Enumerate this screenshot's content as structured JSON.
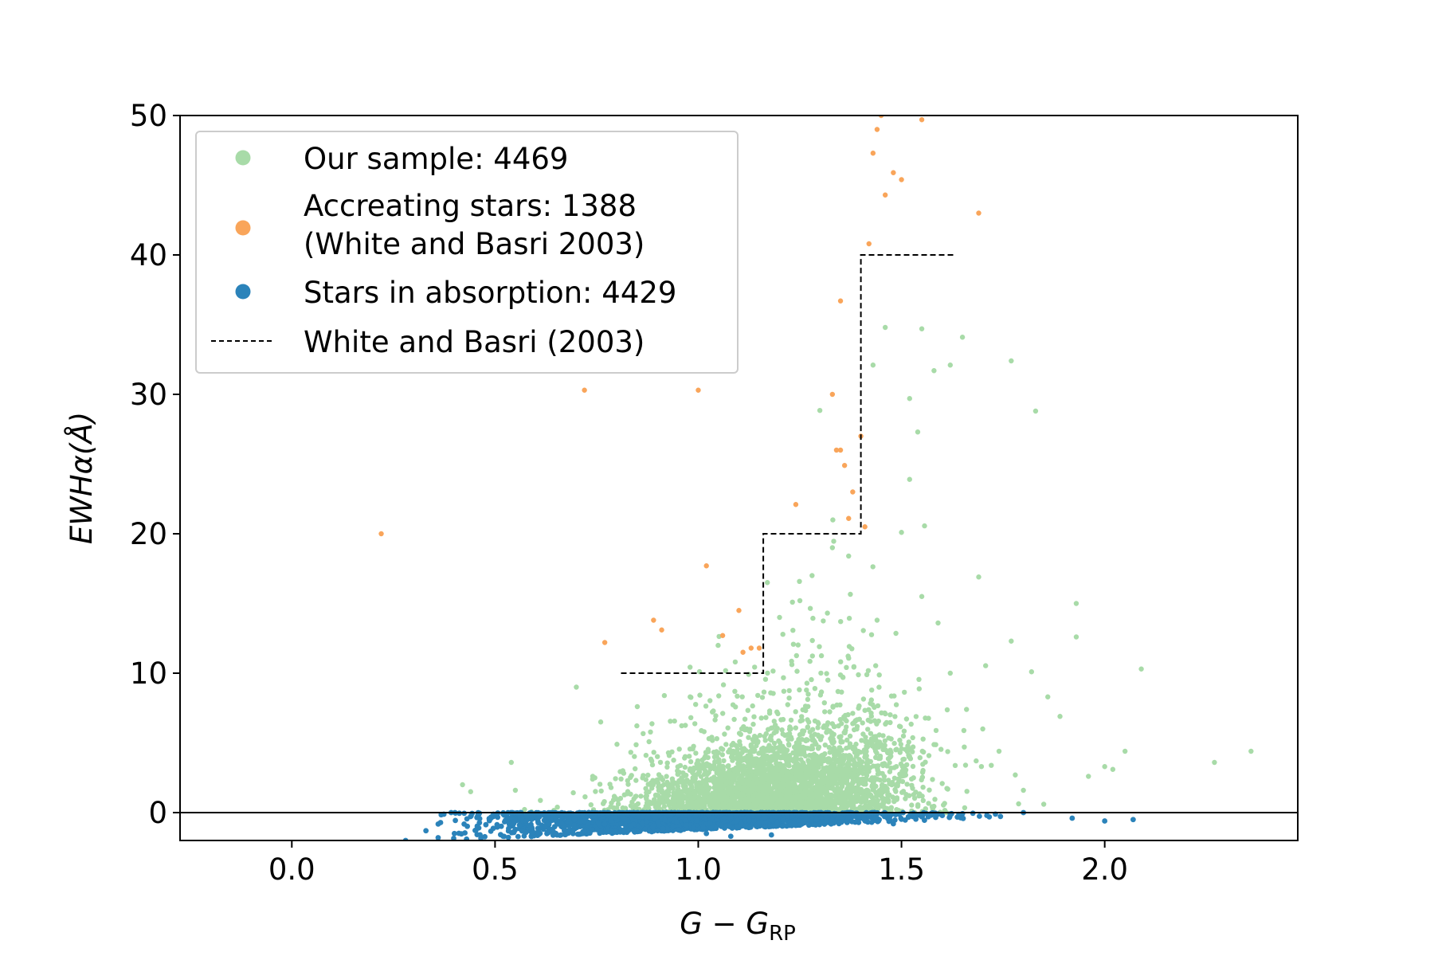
{
  "chart_data": {
    "type": "scatter",
    "xlabel_main": "G − G",
    "xlabel_sub": "RP",
    "ylabel_prefix": "EWHα(",
    "ylabel_unit": "Å",
    "ylabel_suffix": ")",
    "xlim": [
      -0.275,
      2.475
    ],
    "ylim": [
      -2,
      50
    ],
    "xticks": [
      0.0,
      0.5,
      1.0,
      1.5,
      2.0
    ],
    "xtick_labels": [
      "0.0",
      "0.5",
      "1.0",
      "1.5",
      "2.0"
    ],
    "yticks": [
      0,
      10,
      20,
      30,
      40,
      50
    ],
    "ytick_labels": [
      "0",
      "10",
      "20",
      "30",
      "40",
      "50"
    ],
    "grid": false,
    "legend_position": "top-left",
    "legend": [
      {
        "label": "Our sample: 4469",
        "marker": "dot",
        "color": "#a8dba8"
      },
      {
        "label": "Accreating stars: 1388",
        "label2": "(White and Basri 2003)",
        "marker": "dot",
        "color": "#f9a55a"
      },
      {
        "label": "Stars in absorption: 4429",
        "marker": "dot",
        "color": "#2b83ba"
      },
      {
        "label": "White and Basri (2003)",
        "marker": "dashed-line",
        "color": "#000000"
      }
    ],
    "zero_line": 0,
    "threshold_steps": [
      [
        0.81,
        10
      ],
      [
        1.16,
        10
      ],
      [
        1.16,
        20
      ],
      [
        1.4,
        20
      ],
      [
        1.4,
        40
      ],
      [
        1.63,
        40
      ]
    ],
    "series": [
      {
        "name": "Accreating stars: 1388 (White and Basri 2003)",
        "color": "#f9a55a",
        "points": [
          [
            0.22,
            20.0
          ],
          [
            0.72,
            30.3
          ],
          [
            0.77,
            12.2
          ],
          [
            0.89,
            13.8
          ],
          [
            0.91,
            13.1
          ],
          [
            1.0,
            30.3
          ],
          [
            1.02,
            17.7
          ],
          [
            1.06,
            12.7
          ],
          [
            1.1,
            14.5
          ],
          [
            1.11,
            11.5
          ],
          [
            1.13,
            11.8
          ],
          [
            1.15,
            11.8
          ],
          [
            1.24,
            22.1
          ],
          [
            1.33,
            30.0
          ],
          [
            1.35,
            36.7
          ],
          [
            1.34,
            26.0
          ],
          [
            1.35,
            26.0
          ],
          [
            1.36,
            24.9
          ],
          [
            1.37,
            21.1
          ],
          [
            1.38,
            23.0
          ],
          [
            1.4,
            27.0
          ],
          [
            1.41,
            20.5
          ],
          [
            1.42,
            40.8
          ],
          [
            1.43,
            47.3
          ],
          [
            1.44,
            49.0
          ],
          [
            1.45,
            50.0
          ],
          [
            1.46,
            44.3
          ],
          [
            1.48,
            45.9
          ],
          [
            1.5,
            45.4
          ],
          [
            1.55,
            49.7
          ],
          [
            1.69,
            43.0
          ]
        ]
      },
      {
        "name": "Our sample: 4469",
        "color": "#a8dba8",
        "points": [
          [
            0.42,
            2.0
          ],
          [
            0.44,
            1.5
          ],
          [
            0.54,
            3.6
          ],
          [
            0.55,
            1.6
          ],
          [
            0.7,
            9.0
          ],
          [
            0.74,
            2.4
          ],
          [
            0.76,
            6.5
          ],
          [
            0.8,
            4.9
          ],
          [
            0.85,
            7.6
          ],
          [
            0.98,
            8.3
          ],
          [
            1.43,
            32.1
          ],
          [
            1.46,
            34.8
          ],
          [
            1.52,
            29.7
          ],
          [
            1.54,
            27.3
          ],
          [
            1.55,
            34.7
          ],
          [
            1.58,
            31.7
          ],
          [
            1.62,
            32.1
          ],
          [
            1.65,
            34.1
          ],
          [
            1.77,
            32.4
          ],
          [
            1.83,
            28.8
          ],
          [
            1.69,
            16.9
          ],
          [
            1.77,
            12.3
          ],
          [
            1.82,
            10.1
          ],
          [
            1.86,
            8.3
          ],
          [
            1.89,
            6.9
          ],
          [
            1.93,
            15.0
          ],
          [
            1.93,
            12.6
          ],
          [
            1.96,
            2.6
          ],
          [
            2.0,
            3.3
          ],
          [
            2.02,
            3.1
          ],
          [
            2.05,
            4.4
          ],
          [
            2.09,
            10.3
          ],
          [
            2.27,
            3.6
          ],
          [
            2.36,
            4.4
          ],
          [
            1.17,
            16.5
          ],
          [
            1.2,
            14.0
          ],
          [
            1.25,
            15.2
          ],
          [
            1.28,
            17.0
          ],
          [
            1.33,
            19.0
          ],
          [
            1.37,
            18.4
          ],
          [
            1.44,
            13.8
          ],
          [
            1.5,
            20.1
          ],
          [
            1.52,
            23.9
          ],
          [
            1.55,
            15.5
          ],
          [
            1.59,
            13.6
          ],
          [
            1.62,
            10.0
          ],
          [
            1.66,
            7.4
          ],
          [
            1.7,
            6.0
          ],
          [
            1.74,
            4.4
          ],
          [
            1.78,
            2.7
          ],
          [
            1.8,
            1.6
          ],
          [
            1.85,
            0.6
          ]
        ]
      },
      {
        "name": "Stars in absorption: 4429",
        "color": "#2b83ba",
        "points": [
          [
            0.28,
            -2.0
          ],
          [
            0.33,
            -1.3
          ],
          [
            0.36,
            -1.8
          ],
          [
            0.4,
            -1.5
          ],
          [
            0.43,
            -1.9
          ],
          [
            0.46,
            -1.1
          ],
          [
            0.46,
            -0.1
          ],
          [
            0.49,
            -0.4
          ],
          [
            0.52,
            -1.7
          ],
          [
            0.56,
            -0.9
          ],
          [
            0.58,
            -0.5
          ],
          [
            0.63,
            -0.8
          ],
          [
            0.68,
            -1.3
          ],
          [
            0.72,
            -0.6
          ],
          [
            0.81,
            -0.8
          ],
          [
            0.9,
            -1.3
          ],
          [
            1.02,
            -1.5
          ],
          [
            1.08,
            -1.7
          ],
          [
            1.18,
            -1.6
          ],
          [
            1.25,
            -0.9
          ],
          [
            1.35,
            -0.7
          ],
          [
            1.48,
            -0.8
          ],
          [
            1.55,
            -0.3
          ],
          [
            1.62,
            -0.1
          ],
          [
            1.71,
            -0.2
          ],
          [
            1.8,
            0.0
          ],
          [
            1.92,
            -0.4
          ],
          [
            2.0,
            -0.6
          ],
          [
            2.07,
            -0.5
          ]
        ]
      }
    ],
    "clouds": [
      {
        "name": "Our sample: 4469",
        "color": "#a8dba8",
        "count": 3200,
        "x_mean": 1.2,
        "x_sd": 0.17,
        "y_scale": 3.2,
        "y_x_slope": 4.0
      },
      {
        "name": "Stars in absorption: 4429",
        "color": "#2b83ba",
        "count": 2600,
        "x_mean": 0.98,
        "x_sd": 0.24,
        "y_min": -2.0,
        "y_max": 0.0
      }
    ]
  }
}
